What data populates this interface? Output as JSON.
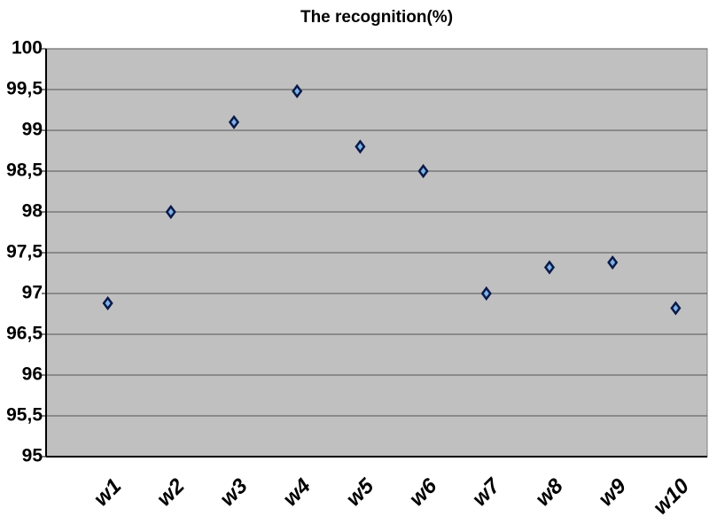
{
  "chart_data": {
    "type": "scatter",
    "title": "The recognition(%)",
    "categories": [
      "w1",
      "w2",
      "w3",
      "w4",
      "w5",
      "w6",
      "w7",
      "w8",
      "w9",
      "w10"
    ],
    "values": [
      96.88,
      98.0,
      99.1,
      99.48,
      98.8,
      98.5,
      97.0,
      97.32,
      97.38,
      96.82
    ],
    "color": "#7fb2e5",
    "ylim": [
      95,
      100
    ],
    "yticks": [
      95,
      {
        "value": 95.5,
        "label": "95,5"
      },
      96,
      {
        "value": 96.5,
        "label": "96,5"
      },
      97,
      {
        "value": 97.5,
        "label": "97,5"
      },
      98,
      {
        "value": 98.5,
        "label": "98,5"
      },
      99,
      {
        "value": 99.5,
        "label": "99,5"
      },
      100
    ],
    "grid": true
  }
}
